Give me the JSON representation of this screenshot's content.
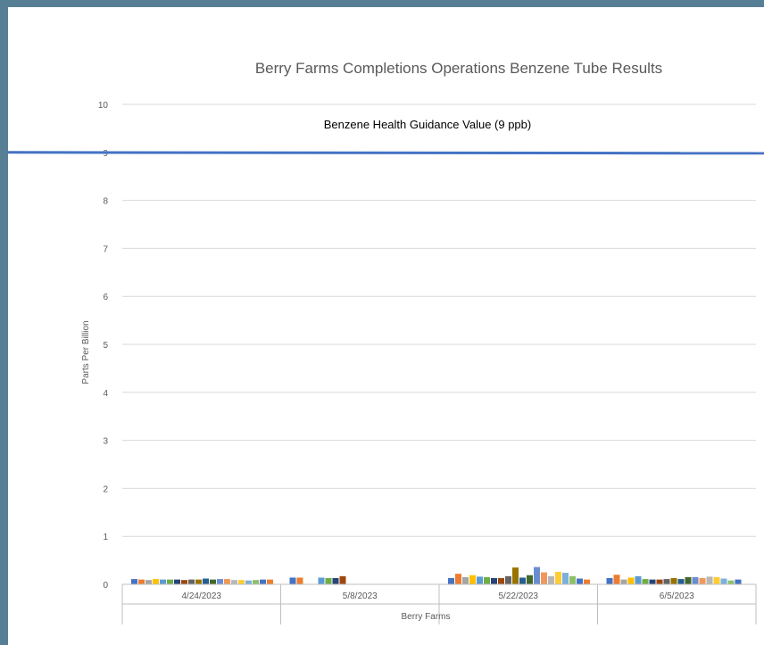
{
  "chart_data": {
    "type": "bar",
    "title": "Berry Farms Completions Operations Benzene Tube Results",
    "xlabel": "Berry Farms",
    "ylabel": "Parts Per Billion",
    "ylim": [
      0,
      10
    ],
    "yticks": [
      "0",
      "1",
      "2",
      "3",
      "4",
      "5",
      "6",
      "7",
      "8",
      "9",
      "10"
    ],
    "grid": true,
    "legend": "none",
    "categories": [
      "4/24/2023",
      "5/8/2023",
      "5/22/2023",
      "6/5/2023"
    ],
    "reference_line": {
      "label": "Benzene Health Guidance Value (9 ppb)",
      "value": 9,
      "color": "#4472c4"
    },
    "palette": [
      "#4472c4",
      "#ed7d31",
      "#a5a5a5",
      "#ffc000",
      "#5b9bd5",
      "#70ad47",
      "#264478",
      "#9e480e",
      "#636363",
      "#997300",
      "#255e91",
      "#43682b",
      "#698ed0",
      "#f1975a",
      "#b7b7b7",
      "#ffcd33",
      "#7cafdd",
      "#8cc168"
    ],
    "groups": [
      {
        "category": "4/24/2023",
        "values": [
          0.11,
          0.1,
          0.09,
          0.11,
          0.1,
          0.1,
          0.1,
          0.09,
          0.1,
          0.1,
          0.12,
          0.1,
          0.11,
          0.11,
          0.09,
          0.09,
          0.08,
          0.09,
          0.1,
          0.1
        ]
      },
      {
        "category": "5/8/2023",
        "values": [
          0.14,
          0.14,
          null,
          null,
          0.14,
          0.13,
          0.13,
          0.17
        ]
      },
      {
        "category": "5/22/2023",
        "values": [
          0.13,
          0.22,
          0.15,
          0.19,
          0.16,
          0.15,
          0.13,
          0.13,
          0.17,
          0.35,
          0.14,
          0.19,
          0.36,
          0.25,
          0.17,
          0.26,
          0.24,
          0.17,
          0.12,
          0.1
        ]
      },
      {
        "category": "6/5/2023",
        "values": [
          0.13,
          0.2,
          0.1,
          0.14,
          0.17,
          0.11,
          0.1,
          0.1,
          0.11,
          0.13,
          0.11,
          0.15,
          0.15,
          0.13,
          0.16,
          0.15,
          0.12,
          0.08,
          0.1
        ]
      }
    ]
  }
}
